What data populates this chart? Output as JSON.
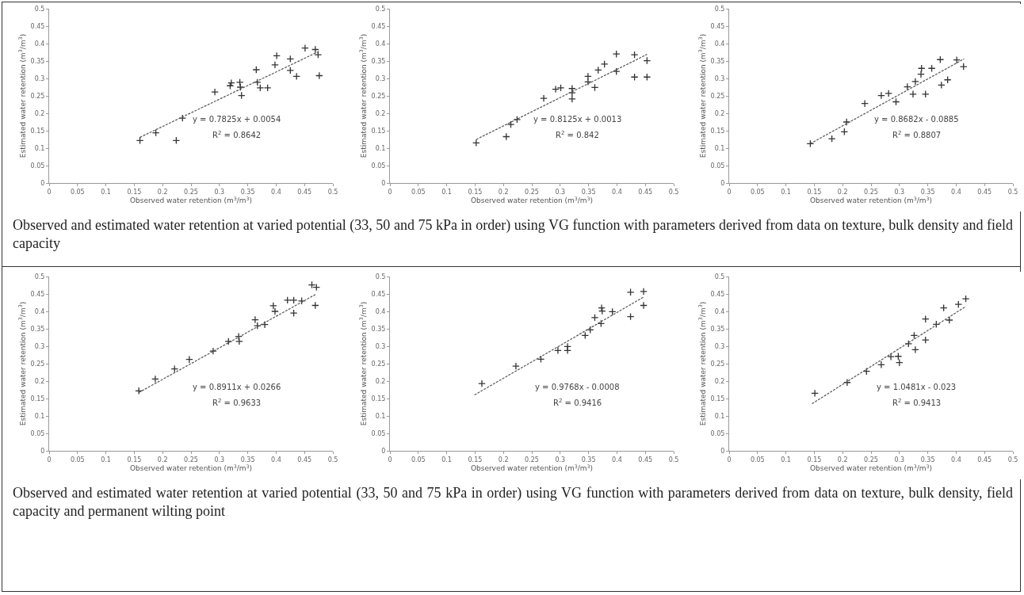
{
  "chart_data": [
    {
      "type": "scatter",
      "xlabel": "Observed water retention (m$^{3}$/m$^{3}$)",
      "ylabel": "Estimated water retention (m$^{3}$/m$^{3}$)",
      "xlim": [
        0,
        0.5
      ],
      "ylim": [
        0,
        0.5
      ],
      "xticks": [
        0,
        0.05,
        0.1,
        0.15,
        0.2,
        0.25,
        0.3,
        0.35,
        0.4,
        0.45,
        0.5
      ],
      "yticks": [
        0,
        0.05,
        0.1,
        0.15,
        0.2,
        0.25,
        0.3,
        0.35,
        0.4,
        0.45,
        0.5
      ],
      "grid": false,
      "annotations": [
        "y = 0.7825x + 0.0054",
        "R$^{2}$ = 0.8642",
        "Observed and estimated water retention at varied potential (33, 50 and 75 kPa in order) using VG function with parameters derived from data on texture, bulk density and field capacity"
      ],
      "series": [
        {
          "type": "scatter",
          "marker": "cross",
          "color": "#333333",
          "x": [
            0.16,
            0.188,
            0.224,
            0.235,
            0.292,
            0.319,
            0.321,
            0.336,
            0.337,
            0.339,
            0.365,
            0.367,
            0.372,
            0.385,
            0.398,
            0.401,
            0.425,
            0.425,
            0.436,
            0.451,
            0.469,
            0.474,
            0.476
          ],
          "values": [
            0.122,
            0.144,
            0.122,
            0.186,
            0.261,
            0.279,
            0.287,
            0.289,
            0.275,
            0.251,
            0.325,
            0.289,
            0.273,
            0.273,
            0.339,
            0.365,
            0.356,
            0.323,
            0.306,
            0.387,
            0.383,
            0.368,
            0.308
          ]
        },
        {
          "type": "line",
          "line_style": "dashed",
          "color": "#555555",
          "x": [
            0.16,
            0.476
          ],
          "values": [
            0.131,
            0.378
          ]
        }
      ]
    },
    {
      "type": "scatter",
      "xlabel": "Observed water retention (m$^{3}$/m$^{3}$)",
      "ylabel": "Estimated water retention (m$^{3}$/m$^{3}$)",
      "xlim": [
        0,
        0.5
      ],
      "ylim": [
        0,
        0.5
      ],
      "xticks": [
        0,
        0.05,
        0.1,
        0.15,
        0.2,
        0.25,
        0.3,
        0.35,
        0.4,
        0.45,
        0.5
      ],
      "yticks": [
        0,
        0.05,
        0.1,
        0.15,
        0.2,
        0.25,
        0.3,
        0.35,
        0.4,
        0.45,
        0.5
      ],
      "grid": false,
      "annotations": [
        "y = 0.8125x + 0.0013",
        "R$^{2}$ = 0.842"
      ],
      "series": [
        {
          "type": "scatter",
          "marker": "cross",
          "color": "#333333",
          "x": [
            0.152,
            0.205,
            0.213,
            0.224,
            0.271,
            0.292,
            0.301,
            0.321,
            0.321,
            0.321,
            0.349,
            0.349,
            0.361,
            0.367,
            0.378,
            0.399,
            0.399,
            0.431,
            0.431,
            0.453,
            0.453
          ],
          "values": [
            0.115,
            0.133,
            0.168,
            0.182,
            0.243,
            0.269,
            0.273,
            0.271,
            0.259,
            0.241,
            0.306,
            0.29,
            0.274,
            0.324,
            0.341,
            0.37,
            0.32,
            0.368,
            0.304,
            0.351,
            0.304
          ]
        },
        {
          "type": "line",
          "line_style": "dashed",
          "color": "#555555",
          "x": [
            0.152,
            0.453
          ],
          "values": [
            0.125,
            0.369
          ]
        }
      ]
    },
    {
      "type": "scatter",
      "xlabel": "Observed water retention (m$^{3}$/m$^{3}$)",
      "ylabel": "Estimated water retention (m$^{3}$/m$^{3}$)",
      "xlim": [
        0,
        0.5
      ],
      "ylim": [
        0,
        0.5
      ],
      "xticks": [
        0,
        0.05,
        0.1,
        0.15,
        0.2,
        0.25,
        0.3,
        0.35,
        0.4,
        0.45,
        0.5
      ],
      "yticks": [
        0,
        0.05,
        0.1,
        0.15,
        0.2,
        0.25,
        0.3,
        0.35,
        0.4,
        0.45,
        0.5
      ],
      "grid": false,
      "annotations": [
        "y = 0.8682x - 0.0885",
        "R$^{2}$ = 0.8807"
      ],
      "series": [
        {
          "type": "scatter",
          "marker": "cross",
          "color": "#333333",
          "x": [
            0.143,
            0.181,
            0.203,
            0.207,
            0.239,
            0.268,
            0.281,
            0.294,
            0.314,
            0.324,
            0.328,
            0.338,
            0.339,
            0.346,
            0.357,
            0.374,
            0.372,
            0.385,
            0.401,
            0.413
          ],
          "values": [
            0.113,
            0.127,
            0.147,
            0.175,
            0.228,
            0.251,
            0.257,
            0.233,
            0.276,
            0.255,
            0.291,
            0.312,
            0.329,
            0.255,
            0.329,
            0.281,
            0.354,
            0.296,
            0.353,
            0.334
          ]
        },
        {
          "type": "line",
          "line_style": "dashed",
          "color": "#555555",
          "x": [
            0.143,
            0.414
          ],
          "values": [
            0.113,
            0.356
          ]
        }
      ]
    },
    {
      "type": "scatter",
      "xlabel": "Observed water retention (m$^{3}$/m$^{3}$)",
      "ylabel": "Estimated water retention (m$^{3}$/m$^{3}$)",
      "xlim": [
        0,
        0.5
      ],
      "ylim": [
        0,
        0.5
      ],
      "xticks": [
        0,
        0.05,
        0.1,
        0.15,
        0.2,
        0.25,
        0.3,
        0.35,
        0.4,
        0.45,
        0.5
      ],
      "yticks": [
        0,
        0.05,
        0.1,
        0.15,
        0.2,
        0.25,
        0.3,
        0.35,
        0.4,
        0.45,
        0.5
      ],
      "grid": false,
      "annotations": [
        "y = 0.8911x + 0.0266",
        "R$^{2}$ = 0.9633",
        "Observed and estimated water retention at varied potential (33, 50 and 75 kPa in order) using VG function with parameters derived from data on texture, bulk density, field capacity and permanent wilting point"
      ],
      "series": [
        {
          "type": "scatter",
          "marker": "cross",
          "color": "#333333",
          "x": [
            0.158,
            0.187,
            0.221,
            0.247,
            0.289,
            0.316,
            0.334,
            0.335,
            0.363,
            0.367,
            0.38,
            0.395,
            0.398,
            0.42,
            0.431,
            0.431,
            0.445,
            0.463,
            0.471,
            0.469
          ],
          "values": [
            0.172,
            0.206,
            0.235,
            0.262,
            0.286,
            0.314,
            0.328,
            0.314,
            0.376,
            0.359,
            0.362,
            0.416,
            0.4,
            0.432,
            0.395,
            0.432,
            0.43,
            0.476,
            0.469,
            0.417
          ]
        },
        {
          "type": "line",
          "line_style": "dashed",
          "color": "#555555",
          "x": [
            0.158,
            0.471
          ],
          "values": [
            0.167,
            0.45
          ]
        }
      ]
    },
    {
      "type": "scatter",
      "xlabel": "Observed water retention (m$^{3}$/m$^{3}$)",
      "ylabel": "Estimated water retention (m$^{3}$/m$^{3}$)",
      "xlim": [
        0,
        0.5
      ],
      "ylim": [
        0,
        0.5
      ],
      "xticks": [
        0,
        0.05,
        0.1,
        0.15,
        0.2,
        0.25,
        0.3,
        0.35,
        0.4,
        0.45,
        0.5
      ],
      "yticks": [
        0,
        0.05,
        0.1,
        0.15,
        0.2,
        0.25,
        0.3,
        0.35,
        0.4,
        0.45,
        0.5
      ],
      "grid": false,
      "annotations": [
        "y = 0.9768x - 0.0008",
        "R$^{2}$ = 0.9416"
      ],
      "series": [
        {
          "type": "scatter",
          "marker": "cross",
          "color": "#333333",
          "x": [
            0.162,
            0.222,
            0.266,
            0.296,
            0.313,
            0.313,
            0.344,
            0.353,
            0.361,
            0.373,
            0.374,
            0.372,
            0.392,
            0.424,
            0.424,
            0.447,
            0.447
          ],
          "values": [
            0.193,
            0.243,
            0.263,
            0.288,
            0.299,
            0.288,
            0.331,
            0.347,
            0.382,
            0.41,
            0.401,
            0.365,
            0.399,
            0.455,
            0.385,
            0.457,
            0.417
          ]
        },
        {
          "type": "line",
          "line_style": "dashed",
          "color": "#555555",
          "x": [
            0.149,
            0.447
          ],
          "values": [
            0.16,
            0.441
          ]
        }
      ]
    },
    {
      "type": "scatter",
      "xlabel": "Observed water retention (m$^{3}$/m$^{3}$)",
      "ylabel": "Estimated water retention (m$^{3}$/m$^{3}$)",
      "xlim": [
        0,
        0.5
      ],
      "ylim": [
        0,
        0.5
      ],
      "xticks": [
        0,
        0.05,
        0.1,
        0.15,
        0.2,
        0.25,
        0.3,
        0.35,
        0.4,
        0.45,
        0.5
      ],
      "yticks": [
        0,
        0.05,
        0.1,
        0.15,
        0.2,
        0.25,
        0.3,
        0.35,
        0.4,
        0.45,
        0.5
      ],
      "grid": false,
      "annotations": [
        "y = 1.0481x - 0.023",
        "R$^{2}$ = 0.9413"
      ],
      "series": [
        {
          "type": "scatter",
          "marker": "cross",
          "color": "#333333",
          "x": [
            0.151,
            0.208,
            0.242,
            0.268,
            0.285,
            0.298,
            0.3,
            0.316,
            0.328,
            0.326,
            0.346,
            0.346,
            0.365,
            0.378,
            0.388,
            0.404,
            0.417
          ],
          "values": [
            0.165,
            0.196,
            0.228,
            0.247,
            0.27,
            0.271,
            0.253,
            0.307,
            0.29,
            0.331,
            0.318,
            0.378,
            0.363,
            0.41,
            0.375,
            0.42,
            0.436
          ]
        },
        {
          "type": "line",
          "line_style": "dashed",
          "color": "#555555",
          "x": [
            0.146,
            0.417
          ],
          "values": [
            0.135,
            0.414
          ]
        }
      ]
    }
  ]
}
